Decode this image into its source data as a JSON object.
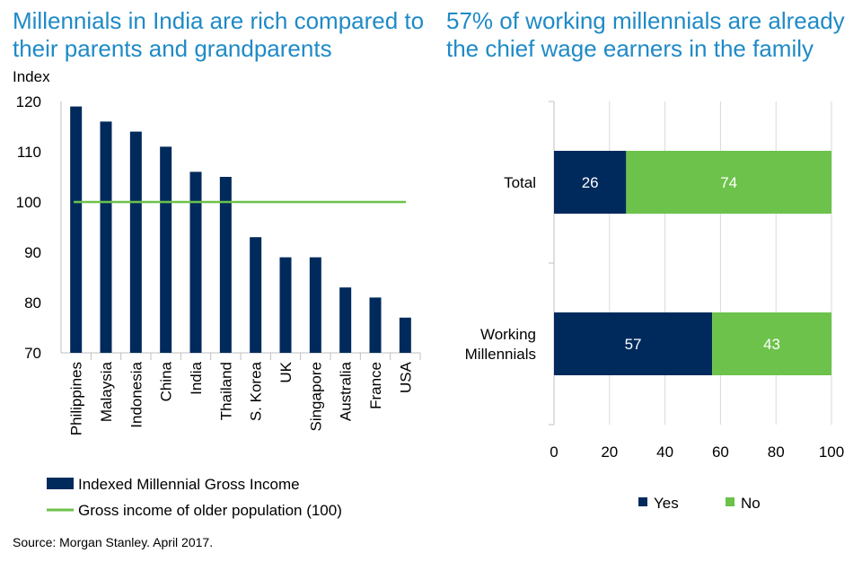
{
  "left_title": "Millennials in India are rich compared to their parents and grandparents",
  "right_title": "57% of working millennials are already the chief wage earners in the family",
  "source": "Source: Morgan Stanley. April 2017.",
  "colors": {
    "navy": "#002a5c",
    "green": "#6cc24a",
    "title_blue": "#1f8ac6",
    "axis": "#bfbfbf"
  },
  "chart_data": [
    {
      "type": "bar",
      "title": "Millennials in India are rich compared to their parents and grandparents",
      "ylabel": "Index",
      "ylim": [
        70,
        120
      ],
      "yticks": [
        70,
        80,
        90,
        100,
        110,
        120
      ],
      "categories": [
        "Philippines",
        "Malaysia",
        "Indonesia",
        "China",
        "India",
        "Thailand",
        "S. Korea",
        "UK",
        "Singapore",
        "Australia",
        "France",
        "USA"
      ],
      "series": [
        {
          "name": "Indexed Millennial Gross Income",
          "values": [
            119,
            116,
            114,
            111,
            106,
            105,
            93,
            89,
            89,
            83,
            81,
            77
          ]
        }
      ],
      "reference_line": {
        "name": "Gross income of older population (100)",
        "value": 100
      },
      "legend_position": "bottom"
    },
    {
      "type": "bar",
      "orientation": "horizontal-stacked",
      "title": "57% of working millennials are already the chief wage earners in the family",
      "categories": [
        "Total",
        "Working Millennials"
      ],
      "series": [
        {
          "name": "Yes",
          "values": [
            26,
            57
          ]
        },
        {
          "name": "No",
          "values": [
            74,
            43
          ]
        }
      ],
      "xlim": [
        0,
        100
      ],
      "xticks": [
        0,
        20,
        40,
        60,
        80,
        100
      ],
      "legend_position": "bottom"
    }
  ]
}
